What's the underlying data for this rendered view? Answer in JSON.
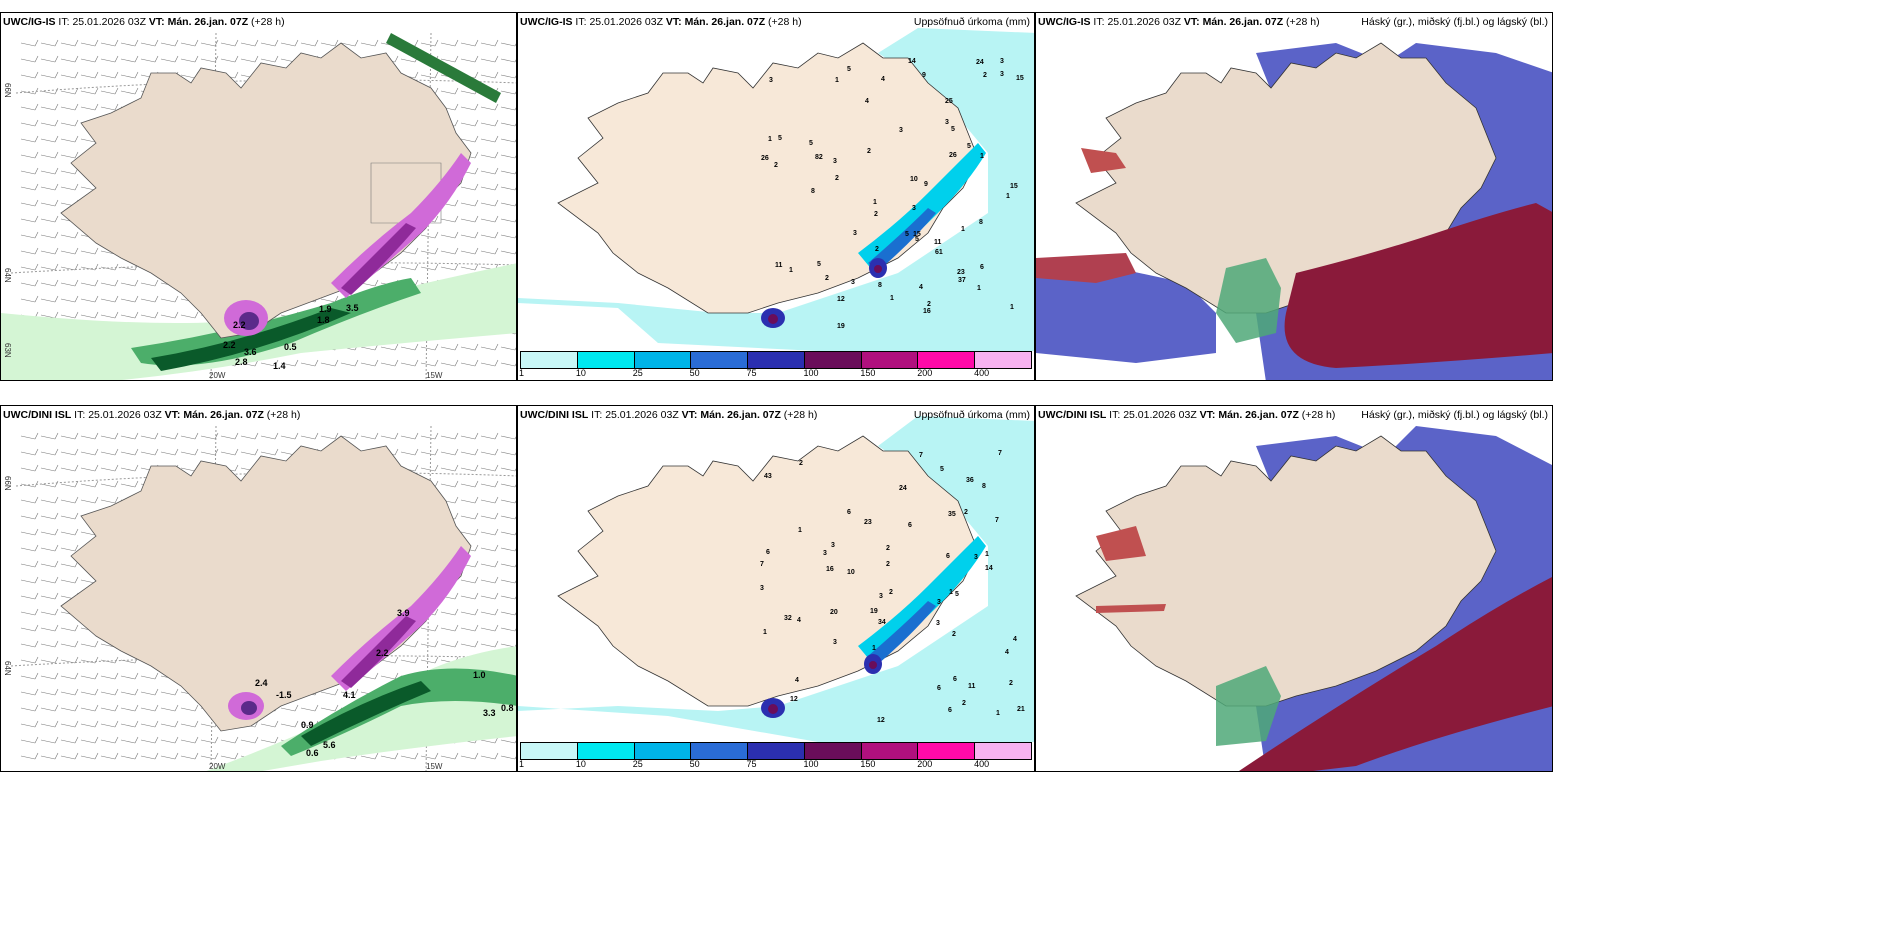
{
  "header_common": {
    "it_prefix": "IT: ",
    "it_value": "25.01.2026 03Z",
    "vt_prefix": "VT: ",
    "vt_value": "Mán. 26.jan. 07Z",
    "lead": "(+28 h)"
  },
  "rows": [
    {
      "model": "UWC/IG-IS"
    },
    {
      "model": "UWC/DINI ISL"
    }
  ],
  "precip_title": "Uppsöfnuð úrkoma (mm)",
  "cloud_title": "Háský (gr.), miðský (fj.bl.) og lágský (bl.)",
  "axis_labels": {
    "lat66": "66N",
    "lat64": "64N",
    "lat63": "63N",
    "lon20": "20W",
    "lon15": "15W",
    "lat66e": "66N",
    "lat64e": "64N"
  },
  "legend": {
    "ticks": [
      "1",
      "10",
      "25",
      "50",
      "75",
      "100",
      "150",
      "200",
      "400"
    ],
    "colors": [
      "#c8f7f7",
      "#00e8f0",
      "#00b4e8",
      "#2a6cd6",
      "#2b2fb0",
      "#6a0d5a",
      "#b0107e",
      "#ff0aa8",
      "#f7b2f0"
    ]
  },
  "row1_precip_labels": [
    "2",
    "1",
    "5",
    "5",
    "5",
    "4",
    "1",
    "2",
    "2",
    "2",
    "1",
    "1",
    "1",
    "15",
    "26",
    "24",
    "2",
    "2",
    "1",
    "1",
    "23",
    "5",
    "12",
    "37",
    "9",
    "5",
    "8",
    "82",
    "1",
    "4",
    "61",
    "3",
    "25",
    "3",
    "5",
    "8",
    "14",
    "5",
    "15",
    "11",
    "4",
    "10",
    "15",
    "6",
    "9",
    "8",
    "5",
    "2",
    "3",
    "3",
    "3",
    "3",
    "3",
    "3",
    "3",
    "1",
    "1",
    "2",
    "19",
    "11",
    "26",
    "16"
  ],
  "row1_wind_labels": [
    "1.8",
    "3.5",
    "2.2",
    "3.6",
    "2.8",
    "1.4",
    "0.5",
    "1.9",
    "2.2"
  ],
  "row2_precip_labels": [
    "3",
    "4",
    "3",
    "4",
    "6",
    "2",
    "1",
    "2",
    "2",
    "2",
    "1",
    "3",
    "1",
    "2",
    "3",
    "1",
    "8",
    "32",
    "36",
    "23",
    "34",
    "3",
    "6",
    "5",
    "14",
    "4",
    "1",
    "35",
    "21",
    "4",
    "7",
    "7",
    "6",
    "6",
    "10",
    "12",
    "6",
    "2",
    "5",
    "6",
    "19",
    "20",
    "24",
    "12",
    "7",
    "6",
    "7",
    "3",
    "3",
    "2",
    "1",
    "3",
    "2",
    "11",
    "43",
    "16"
  ],
  "row2_wind_labels": [
    "2.4",
    "-1.5",
    "0.9",
    "0.6",
    "5.6",
    "4.1",
    "1.0",
    "3.3",
    "0.8",
    "3.9",
    "2.2"
  ]
}
